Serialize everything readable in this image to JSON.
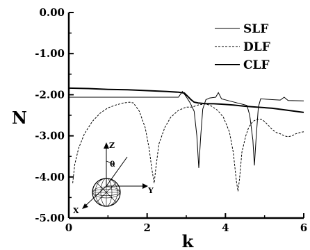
{
  "chart_data": {
    "type": "line",
    "xlabel": "k",
    "ylabel": "N",
    "xlim": [
      0,
      6
    ],
    "ylim": [
      -5,
      0
    ],
    "x_ticks": [
      "0",
      "2",
      "4",
      "6"
    ],
    "y_ticks": [
      "0.00",
      "-1.00",
      "-2.00",
      "-3.00",
      "-4.00",
      "-5.00"
    ],
    "legend_position": "top-right",
    "series": [
      {
        "name": "SLF",
        "style": "thin-solid",
        "points": [
          [
            0.0,
            -2.06
          ],
          [
            1.0,
            -2.06
          ],
          [
            2.0,
            -2.06
          ],
          [
            2.8,
            -2.06
          ],
          [
            2.9,
            -1.92
          ],
          [
            3.0,
            -2.05
          ],
          [
            3.1,
            -2.2
          ],
          [
            3.2,
            -2.4
          ],
          [
            3.27,
            -3.0
          ],
          [
            3.32,
            -3.78
          ],
          [
            3.37,
            -3.0
          ],
          [
            3.42,
            -2.35
          ],
          [
            3.5,
            -2.12
          ],
          [
            3.6,
            -2.08
          ],
          [
            3.75,
            -2.06
          ],
          [
            3.82,
            -1.95
          ],
          [
            3.9,
            -2.1
          ],
          [
            4.1,
            -2.15
          ],
          [
            4.3,
            -2.2
          ],
          [
            4.55,
            -2.26
          ],
          [
            4.62,
            -2.5
          ],
          [
            4.7,
            -3.1
          ],
          [
            4.74,
            -3.72
          ],
          [
            4.78,
            -3.1
          ],
          [
            4.84,
            -2.3
          ],
          [
            4.9,
            -2.1
          ],
          [
            5.2,
            -2.12
          ],
          [
            5.4,
            -2.13
          ],
          [
            5.5,
            -2.06
          ],
          [
            5.6,
            -2.14
          ],
          [
            6.0,
            -2.15
          ]
        ]
      },
      {
        "name": "DLF",
        "style": "dashed",
        "points": [
          [
            0.1,
            -4.15
          ],
          [
            0.15,
            -3.7
          ],
          [
            0.25,
            -3.3
          ],
          [
            0.4,
            -2.95
          ],
          [
            0.6,
            -2.65
          ],
          [
            0.8,
            -2.45
          ],
          [
            1.0,
            -2.32
          ],
          [
            1.2,
            -2.25
          ],
          [
            1.4,
            -2.2
          ],
          [
            1.55,
            -2.18
          ],
          [
            1.65,
            -2.2
          ],
          [
            1.8,
            -2.4
          ],
          [
            1.95,
            -2.8
          ],
          [
            2.05,
            -3.3
          ],
          [
            2.12,
            -3.8
          ],
          [
            2.18,
            -4.15
          ],
          [
            2.22,
            -3.8
          ],
          [
            2.3,
            -3.2
          ],
          [
            2.45,
            -2.8
          ],
          [
            2.6,
            -2.55
          ],
          [
            2.8,
            -2.38
          ],
          [
            3.0,
            -2.3
          ],
          [
            3.15,
            -2.3
          ],
          [
            3.3,
            -2.25
          ],
          [
            3.5,
            -2.22
          ],
          [
            3.65,
            -2.28
          ],
          [
            3.8,
            -2.38
          ],
          [
            3.95,
            -2.55
          ],
          [
            4.1,
            -2.9
          ],
          [
            4.2,
            -3.4
          ],
          [
            4.28,
            -4.1
          ],
          [
            4.32,
            -4.35
          ],
          [
            4.36,
            -4.05
          ],
          [
            4.42,
            -3.4
          ],
          [
            4.52,
            -3.0
          ],
          [
            4.6,
            -2.78
          ],
          [
            4.7,
            -2.65
          ],
          [
            4.8,
            -2.6
          ],
          [
            4.92,
            -2.6
          ],
          [
            5.0,
            -2.65
          ],
          [
            5.1,
            -2.75
          ],
          [
            5.2,
            -2.85
          ],
          [
            5.3,
            -2.92
          ],
          [
            5.4,
            -2.95
          ],
          [
            5.5,
            -3.0
          ],
          [
            5.6,
            -3.02
          ],
          [
            5.7,
            -3.0
          ],
          [
            5.8,
            -2.95
          ],
          [
            5.9,
            -2.92
          ],
          [
            6.0,
            -2.9
          ]
        ]
      },
      {
        "name": "CLF",
        "style": "thick-solid",
        "points": [
          [
            0.0,
            -1.84
          ],
          [
            0.5,
            -1.85
          ],
          [
            1.0,
            -1.87
          ],
          [
            1.5,
            -1.88
          ],
          [
            2.0,
            -1.9
          ],
          [
            2.5,
            -1.92
          ],
          [
            2.8,
            -1.94
          ],
          [
            2.95,
            -1.96
          ],
          [
            3.05,
            -2.05
          ],
          [
            3.12,
            -2.12
          ],
          [
            3.2,
            -2.18
          ],
          [
            3.3,
            -2.2
          ],
          [
            3.5,
            -2.22
          ],
          [
            3.7,
            -2.22
          ],
          [
            3.9,
            -2.23
          ],
          [
            4.2,
            -2.25
          ],
          [
            4.5,
            -2.28
          ],
          [
            4.8,
            -2.3
          ],
          [
            5.2,
            -2.33
          ],
          [
            5.6,
            -2.38
          ],
          [
            6.0,
            -2.43
          ]
        ]
      }
    ],
    "inset": {
      "axis_labels": [
        "Z",
        "Y",
        "X"
      ],
      "angle_label": "θ"
    }
  }
}
